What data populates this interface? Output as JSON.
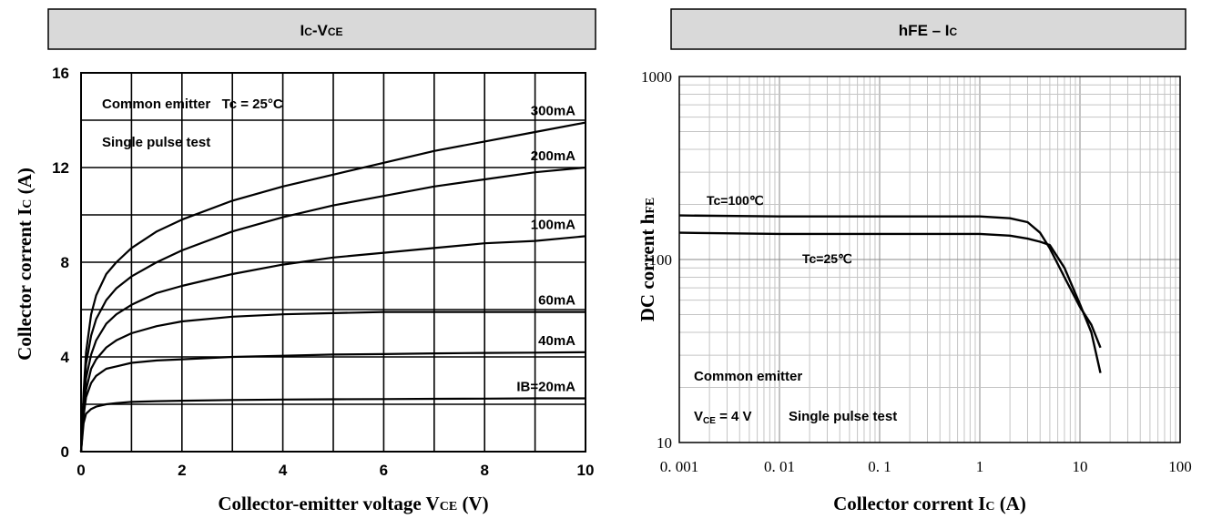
{
  "chart_data": [
    {
      "type": "line",
      "title": "IC-VCE",
      "title_main": "I",
      "title_sub1": "C",
      "title_mid": "-V",
      "title_sub2": "CE",
      "xlabel_main": "Collector-emitter voltage V",
      "xlabel_sub": "CE",
      "xlabel_end": " (V)",
      "ylabel_main": "Collector corrent I",
      "ylabel_sub": "C",
      "ylabel_end": " (A)",
      "xlim": [
        0,
        10
      ],
      "ylim": [
        0,
        16
      ],
      "xticks": [
        "0",
        "2",
        "4",
        "6",
        "8",
        "10"
      ],
      "yticks": [
        "0",
        "4",
        "8",
        "12",
        "16"
      ],
      "grid": true,
      "annotations": [
        "Common emitter   Tc = 25°C",
        "Single pulse test"
      ],
      "series": [
        {
          "name": "300mA",
          "x": [
            0,
            0.05,
            0.1,
            0.2,
            0.3,
            0.5,
            0.7,
            1,
            1.5,
            2,
            3,
            4,
            5,
            6,
            7,
            8,
            9,
            10
          ],
          "values": [
            0,
            2.5,
            4.2,
            5.8,
            6.6,
            7.5,
            8.0,
            8.6,
            9.3,
            9.8,
            10.6,
            11.2,
            11.7,
            12.2,
            12.7,
            13.1,
            13.5,
            13.9
          ]
        },
        {
          "name": "200mA",
          "x": [
            0,
            0.05,
            0.1,
            0.2,
            0.3,
            0.5,
            0.7,
            1,
            1.5,
            2,
            3,
            4,
            5,
            6,
            7,
            8,
            9,
            10
          ],
          "values": [
            0,
            2.2,
            3.7,
            4.9,
            5.6,
            6.4,
            6.9,
            7.4,
            8.0,
            8.5,
            9.3,
            9.9,
            10.4,
            10.8,
            11.2,
            11.5,
            11.8,
            12.0
          ]
        },
        {
          "name": "100mA",
          "x": [
            0,
            0.05,
            0.1,
            0.2,
            0.3,
            0.5,
            0.7,
            1,
            1.5,
            2,
            3,
            4,
            5,
            6,
            7,
            8,
            9,
            10
          ],
          "values": [
            0,
            1.9,
            3.1,
            4.1,
            4.7,
            5.4,
            5.8,
            6.2,
            6.7,
            7.0,
            7.5,
            7.9,
            8.2,
            8.4,
            8.6,
            8.8,
            8.9,
            9.1
          ]
        },
        {
          "name": "60mA",
          "x": [
            0,
            0.05,
            0.1,
            0.2,
            0.3,
            0.5,
            0.7,
            1,
            1.5,
            2,
            3,
            4,
            5,
            6,
            7,
            8,
            9,
            10
          ],
          "values": [
            0,
            1.7,
            2.6,
            3.5,
            3.9,
            4.4,
            4.7,
            5.0,
            5.3,
            5.5,
            5.7,
            5.8,
            5.85,
            5.9,
            5.9,
            5.9,
            5.9,
            5.9
          ]
        },
        {
          "name": "40mA",
          "x": [
            0,
            0.05,
            0.1,
            0.2,
            0.3,
            0.5,
            0.7,
            1,
            1.5,
            2,
            3,
            4,
            5,
            6,
            7,
            8,
            9,
            10
          ],
          "values": [
            0,
            1.5,
            2.3,
            2.9,
            3.2,
            3.5,
            3.6,
            3.75,
            3.85,
            3.9,
            4.0,
            4.05,
            4.1,
            4.12,
            4.15,
            4.17,
            4.18,
            4.2
          ]
        },
        {
          "name": "IB=20mA",
          "x": [
            0,
            0.05,
            0.1,
            0.2,
            0.3,
            0.5,
            0.7,
            1,
            1.5,
            2,
            3,
            4,
            5,
            6,
            7,
            8,
            9,
            10
          ],
          "values": [
            0,
            1.2,
            1.6,
            1.8,
            1.9,
            2.0,
            2.05,
            2.1,
            2.13,
            2.15,
            2.18,
            2.2,
            2.21,
            2.22,
            2.23,
            2.24,
            2.25,
            2.25
          ]
        }
      ]
    },
    {
      "type": "line",
      "title": "hFE – IC",
      "title_main": "hFE – I",
      "title_sub": "C",
      "xlabel_main": "Collector corrent I",
      "xlabel_sub": "C",
      "xlabel_end": " (A)",
      "ylabel_main": "DC corrent h",
      "ylabel_sub": "FE",
      "xscale": "log",
      "yscale": "log",
      "xlim": [
        0.001,
        100
      ],
      "ylim": [
        10,
        1000
      ],
      "xticks": [
        "0. 001",
        "0. 01",
        "0. 1",
        "1",
        "10",
        "100"
      ],
      "yticks": [
        "10",
        "100",
        "1000"
      ],
      "grid": true,
      "annotations": [
        "Common emitter",
        "Single pulse test"
      ],
      "note_vce": {
        "main": "V",
        "sub": "CE",
        "end": " = 4 V"
      },
      "series": [
        {
          "name": "Tc=100℃",
          "x": [
            0.001,
            0.01,
            0.1,
            0.5,
            1,
            2,
            3,
            4,
            5,
            7,
            10,
            13,
            16
          ],
          "values": [
            174,
            172,
            172,
            172,
            172,
            168,
            160,
            140,
            115,
            80,
            55,
            44,
            33
          ]
        },
        {
          "name": "Tc=25℃",
          "x": [
            0.001,
            0.01,
            0.1,
            0.5,
            1,
            2,
            3,
            4,
            5,
            7,
            10,
            13,
            16
          ],
          "values": [
            140,
            138,
            138,
            138,
            138,
            135,
            130,
            125,
            120,
            90,
            57,
            40,
            24
          ]
        }
      ]
    }
  ]
}
